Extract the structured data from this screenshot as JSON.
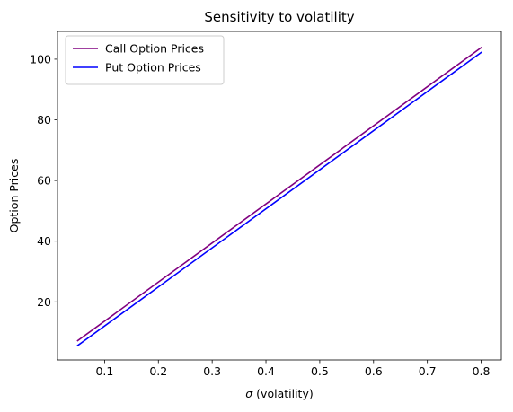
{
  "chart_data": {
    "type": "line",
    "title": "Sensitivity to volatility",
    "xlabel_symbol": "σ",
    "xlabel_rest": " (volatility)",
    "ylabel": "Option Prices",
    "xlim": [
      0.0125,
      0.8375
    ],
    "ylim": [
      0.85,
      109.15
    ],
    "xticks": [
      0.1,
      0.2,
      0.3,
      0.4,
      0.5,
      0.6,
      0.7,
      0.8
    ],
    "xtick_labels": [
      "0.1",
      "0.2",
      "0.3",
      "0.4",
      "0.5",
      "0.6",
      "0.7",
      "0.8"
    ],
    "yticks": [
      20,
      40,
      60,
      80,
      100
    ],
    "ytick_labels": [
      "20",
      "40",
      "60",
      "80",
      "100"
    ],
    "grid": false,
    "legend_position": "top-left",
    "series": [
      {
        "name": "Call Option Prices",
        "color": "#800080",
        "x": [
          0.05,
          0.8
        ],
        "y": [
          7.2,
          103.8
        ]
      },
      {
        "name": "Put Option Prices",
        "color": "#0000ff",
        "x": [
          0.05,
          0.8
        ],
        "y": [
          5.6,
          102.2
        ]
      }
    ]
  }
}
